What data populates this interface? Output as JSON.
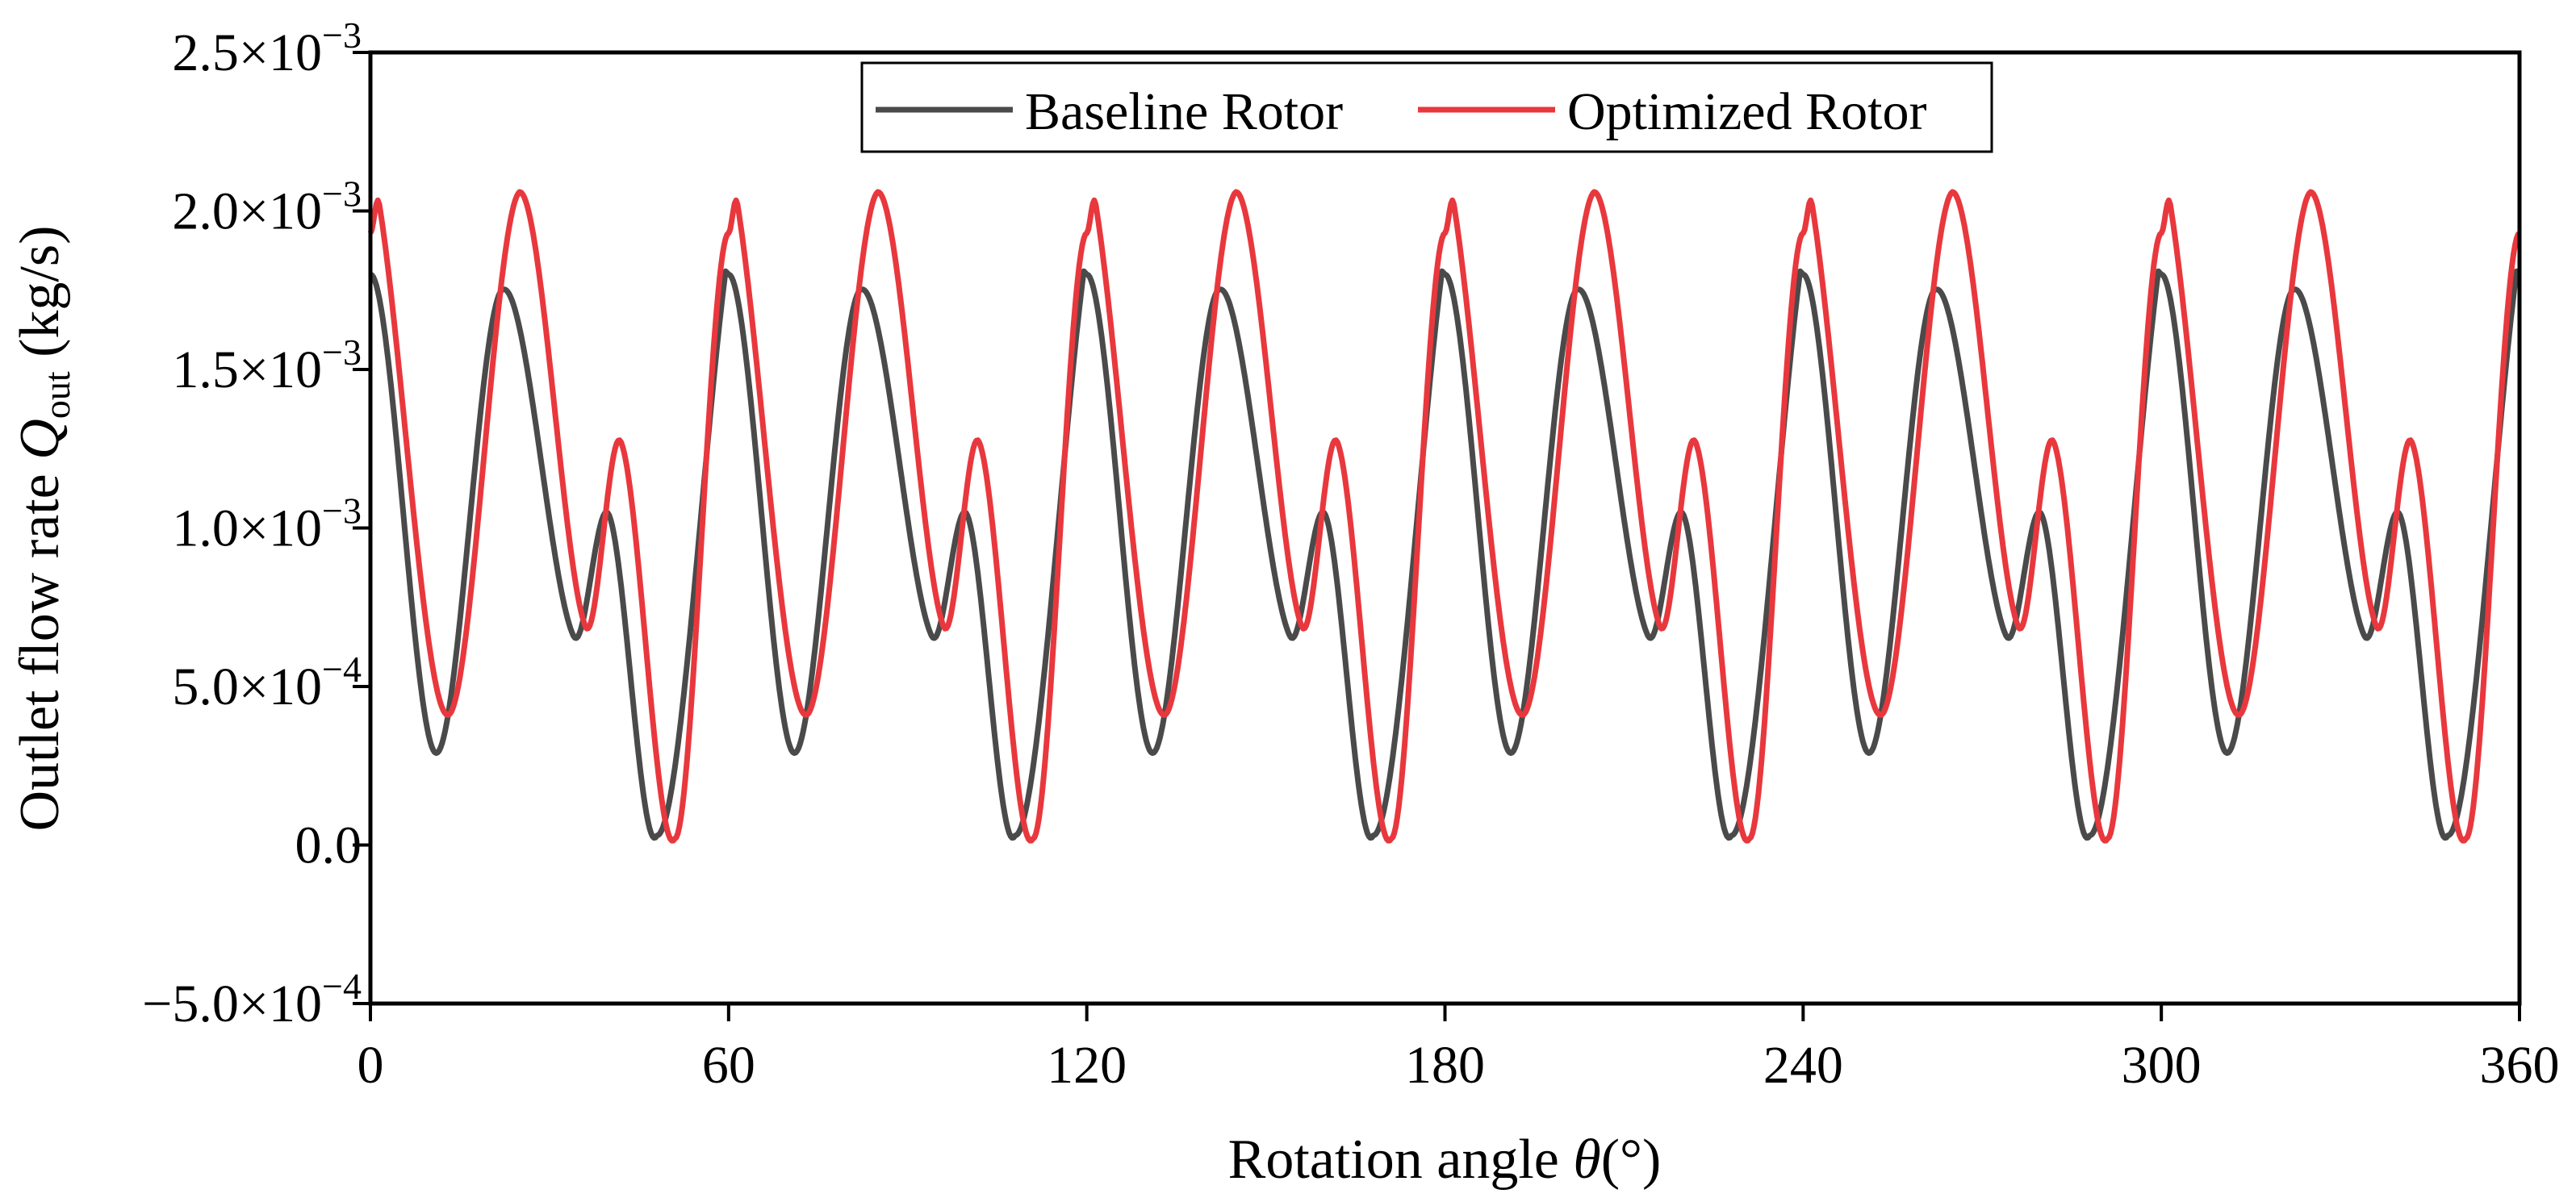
{
  "chart_data": {
    "type": "line",
    "xlabel_main": "Rotation angle ",
    "xlabel_symbol": "θ",
    "xlabel_unit": "(°)",
    "ylabel_main": "Outlet flow rate ",
    "ylabel_symbol": "Q",
    "ylabel_subscript": "out",
    "ylabel_unit": " (kg/s)",
    "xlim": [
      0,
      360
    ],
    "ylim": [
      -0.0005,
      0.0025
    ],
    "x_ticks": [
      {
        "value": 0,
        "label": "0"
      },
      {
        "value": 60,
        "label": "60"
      },
      {
        "value": 120,
        "label": "120"
      },
      {
        "value": 180,
        "label": "180"
      },
      {
        "value": 240,
        "label": "240"
      },
      {
        "value": 300,
        "label": "300"
      },
      {
        "value": 360,
        "label": "360"
      }
    ],
    "y_ticks": [
      {
        "value": -0.0005,
        "mantissa": "−5.0×10",
        "exponent": "−4"
      },
      {
        "value": 0,
        "mantissa": "0.0",
        "exponent": ""
      },
      {
        "value": 0.0005,
        "mantissa": "5.0×10",
        "exponent": "−4"
      },
      {
        "value": 0.001,
        "mantissa": "1.0×10",
        "exponent": "−3"
      },
      {
        "value": 0.0015,
        "mantissa": "1.5×10",
        "exponent": "−3"
      },
      {
        "value": 0.002,
        "mantissa": "2.0×10",
        "exponent": "−3"
      },
      {
        "value": 0.0025,
        "mantissa": "2.5×10",
        "exponent": "−3"
      }
    ],
    "legend_position": "top-center",
    "period_deg": 60,
    "series": [
      {
        "name": "Baseline Rotor",
        "color": "#4a4a4a",
        "keypoints_one_period": [
          [
            0,
            0.0018
          ],
          [
            11,
            0.00029
          ],
          [
            22,
            0.00175
          ],
          [
            34,
            0.00066
          ],
          [
            40,
            0.00104
          ],
          [
            48,
            3e-05
          ],
          [
            59.5,
            0.00181
          ],
          [
            60,
            0.0018
          ]
        ]
      },
      {
        "name": "Optimized Rotor",
        "color": "#e8383d",
        "keypoints_one_period": [
          [
            0,
            0.00193
          ],
          [
            1.5,
            0.00202
          ],
          [
            13,
            0.00041
          ],
          [
            25,
            0.00206
          ],
          [
            36,
            0.00069
          ],
          [
            42,
            0.00127
          ],
          [
            51,
            2e-05
          ],
          [
            60,
            0.00193
          ]
        ]
      }
    ]
  }
}
